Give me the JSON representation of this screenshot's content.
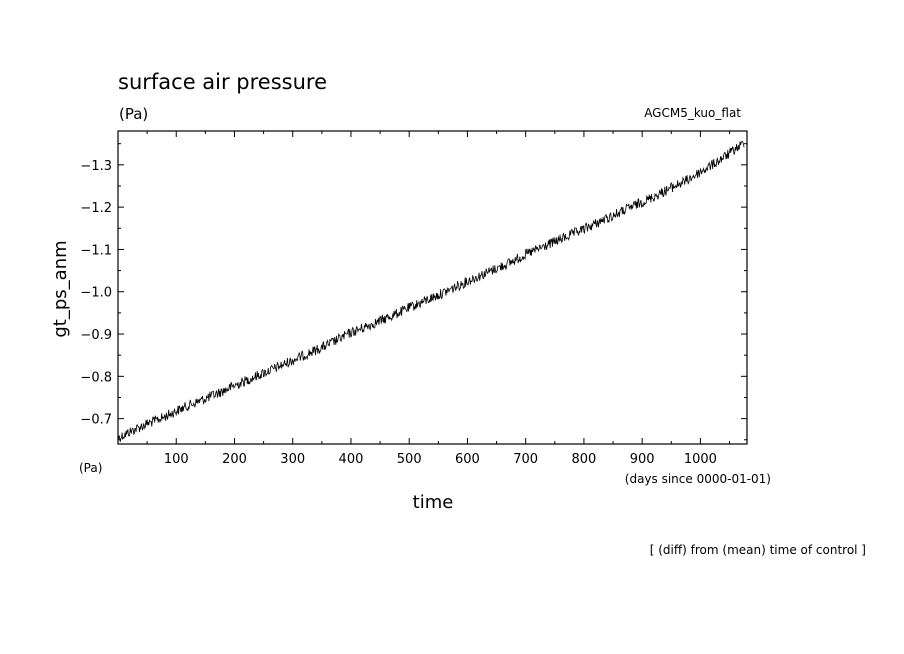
{
  "chart_data": {
    "type": "line",
    "title": "surface air pressure",
    "title_unit": "(Pa)",
    "model_label": "AGCM5_kuo_flat",
    "ylabel": "gt_ps_anm",
    "y_unit": "(Pa)",
    "xlabel": "time",
    "x_unit": "(days since 0000-01-01)",
    "footnote": "[ (diff) from (mean) time of control ]",
    "xlim": [
      0,
      1080
    ],
    "ylim": [
      -0.64,
      -1.38
    ],
    "y_inverted": true,
    "x_ticks": [
      100,
      200,
      300,
      400,
      500,
      600,
      700,
      800,
      900,
      1000
    ],
    "x_tick_labels": [
      "100",
      "200",
      "300",
      "400",
      "500",
      "600",
      "700",
      "800",
      "900",
      "1000"
    ],
    "y_ticks": [
      -0.7,
      -0.8,
      -0.9,
      -1.0,
      -1.1,
      -1.2,
      -1.3
    ],
    "y_tick_labels": [
      "−0.7",
      "−0.8",
      "−0.9",
      "−1.0",
      "−1.1",
      "−1.2",
      "−1.3"
    ],
    "grid": false,
    "series": [
      {
        "x": [
          1,
          25,
          50,
          75,
          100,
          125,
          150,
          175,
          200,
          225,
          250,
          275,
          300,
          325,
          350,
          375,
          400,
          425,
          450,
          475,
          500,
          525,
          550,
          575,
          600,
          625,
          650,
          675,
          700,
          725,
          750,
          775,
          800,
          825,
          850,
          875,
          900,
          925,
          950,
          975,
          1000,
          1025,
          1050,
          1075
        ],
        "y": [
          -0.655,
          -0.672,
          -0.688,
          -0.701,
          -0.718,
          -0.733,
          -0.747,
          -0.762,
          -0.778,
          -0.793,
          -0.808,
          -0.822,
          -0.838,
          -0.853,
          -0.868,
          -0.885,
          -0.903,
          -0.917,
          -0.931,
          -0.946,
          -0.962,
          -0.977,
          -0.992,
          -1.008,
          -1.025,
          -1.04,
          -1.055,
          -1.07,
          -1.088,
          -1.103,
          -1.118,
          -1.133,
          -1.148,
          -1.164,
          -1.18,
          -1.196,
          -1.212,
          -1.228,
          -1.246,
          -1.262,
          -1.283,
          -1.304,
          -1.327,
          -1.352
        ],
        "color": "#000000"
      }
    ]
  }
}
